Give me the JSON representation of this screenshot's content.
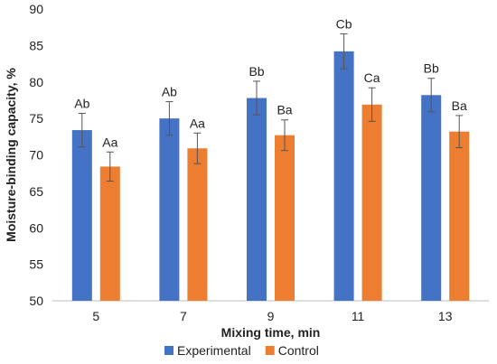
{
  "chart_data": {
    "type": "bar",
    "title": "",
    "xlabel": "Mixing time, min",
    "ylabel": "Moisture-binding capacity, %",
    "ylim": [
      50,
      90
    ],
    "yticks": [
      50,
      55,
      60,
      65,
      70,
      75,
      80,
      85,
      90
    ],
    "categories": [
      "5",
      "7",
      "9",
      "11",
      "13"
    ],
    "grid": false,
    "legend_position": "bottom",
    "series": [
      {
        "name": "Experimental",
        "color": "#4472C4",
        "values": [
          73.4,
          75.0,
          77.8,
          84.2,
          78.2
        ],
        "errors": [
          2.3,
          2.3,
          2.3,
          2.4,
          2.3
        ],
        "labels": [
          "Ab",
          "Ab",
          "Bb",
          "Cb",
          "Bb"
        ]
      },
      {
        "name": "Control",
        "color": "#ED7D31",
        "values": [
          68.4,
          70.9,
          72.7,
          76.9,
          73.2
        ],
        "errors": [
          2.0,
          2.1,
          2.1,
          2.3,
          2.2
        ],
        "labels": [
          "Aa",
          "Aa",
          "Ba",
          "Ca",
          "Ba"
        ]
      }
    ]
  }
}
